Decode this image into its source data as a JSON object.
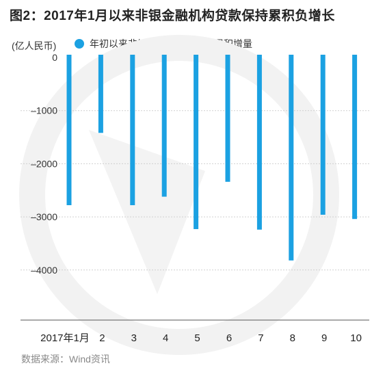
{
  "title": "图2：2017年1月以来非银金融机构贷款保持累积负增长",
  "unit_label": "(亿人民币)",
  "source": "数据来源：Wind资讯",
  "colors": {
    "bar": "#1ba1e2",
    "grid": "#d0d0d0",
    "axis": "#555555"
  },
  "chart_data": {
    "type": "bar",
    "title": "图2：2017年1月以来非银金融机构贷款保持累积负增长",
    "ylabel": "(亿人民币)",
    "xlabel": "",
    "categories": [
      "2017年1月",
      "2",
      "3",
      "4",
      "5",
      "6",
      "7",
      "8",
      "9",
      "10"
    ],
    "series": [
      {
        "name": "年初以来非银金融机构贷款的累积增量",
        "values": [
          -2780,
          -1420,
          -2780,
          -2620,
          -3230,
          -2340,
          -3240,
          -3820,
          -2960,
          -3040
        ]
      }
    ],
    "ylim": [
      -4800,
      200
    ],
    "yticks": [
      0,
      -1000,
      -2000,
      -3000,
      -4000
    ],
    "ytick_labels": [
      "0",
      "–1000",
      "–2000",
      "–3000",
      "–4000"
    ],
    "grid": true,
    "legend_position": "top-left"
  }
}
